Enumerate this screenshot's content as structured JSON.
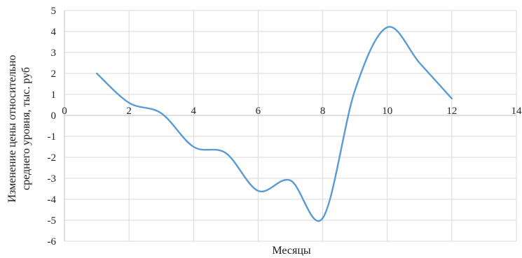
{
  "chart_data": {
    "type": "line",
    "title": "",
    "xlabel": "Месяцы",
    "ylabel": [
      "Изменение цены относительно",
      "среднего уровня, тыс. руб"
    ],
    "xlim": [
      0,
      14
    ],
    "ylim": [
      -6,
      5
    ],
    "x_ticks": [
      0,
      2,
      4,
      6,
      8,
      10,
      12,
      14
    ],
    "y_ticks": [
      -6,
      -5,
      -4,
      -3,
      -2,
      -1,
      0,
      1,
      2,
      3,
      4,
      5
    ],
    "grid": true,
    "smooth": true,
    "series": [
      {
        "color": "#5b9bd5",
        "x": [
          1,
          2,
          3,
          4,
          5,
          6,
          7,
          8,
          9,
          10,
          11,
          12
        ],
        "values": [
          2.0,
          0.6,
          0.1,
          -1.5,
          -1.8,
          -3.6,
          -3.1,
          -4.9,
          1.2,
          4.2,
          2.5,
          0.8
        ]
      }
    ]
  }
}
